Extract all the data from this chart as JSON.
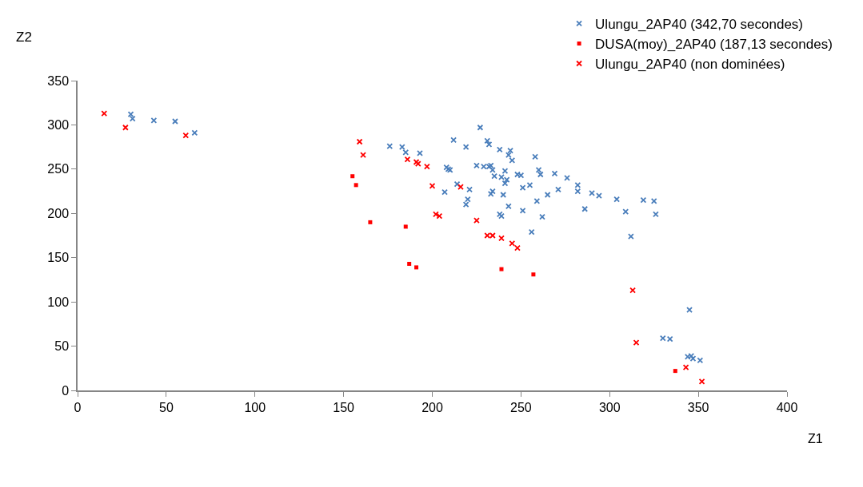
{
  "chart_data": {
    "type": "scatter",
    "xlabel": "Z1",
    "ylabel": "Z2",
    "xlim": [
      0,
      400
    ],
    "ylim": [
      0,
      350
    ],
    "xticks": [
      0,
      50,
      100,
      150,
      200,
      250,
      300,
      350,
      400
    ],
    "yticks": [
      0,
      50,
      100,
      150,
      200,
      250,
      300,
      350
    ],
    "grid": false,
    "legend": "top right",
    "marker": "cross",
    "series": [
      {
        "name": "Ulungu_2AP40 (342,70 secondes)",
        "color": "#4a7ebb",
        "x": [
          30,
          31,
          43,
          55,
          66,
          176,
          183,
          185,
          193,
          212,
          219,
          227,
          231,
          232,
          238,
          244,
          243,
          245,
          258,
          208,
          209,
          210,
          225,
          229,
          232,
          233,
          234,
          235,
          239,
          241,
          242,
          241,
          248,
          250,
          260,
          261,
          214,
          221,
          207,
          220,
          219,
          233,
          234,
          240,
          251,
          255,
          243,
          251,
          259,
          238,
          239,
          256,
          262,
          269,
          276,
          282,
          282,
          290,
          294,
          304,
          319,
          325,
          326,
          309,
          271,
          265,
          286,
          312,
          345,
          330,
          334,
          344,
          346,
          347,
          351
        ],
        "values": [
          312,
          307,
          305,
          304,
          291,
          276,
          275,
          269,
          268,
          283,
          275,
          297,
          282,
          278,
          272,
          271,
          266,
          260,
          264,
          252,
          250,
          249,
          254,
          253,
          253,
          254,
          249,
          242,
          241,
          248,
          238,
          234,
          244,
          243,
          249,
          244,
          233,
          227,
          224,
          216,
          210,
          222,
          225,
          221,
          229,
          232,
          208,
          203,
          214,
          199,
          197,
          179,
          196,
          245,
          240,
          232,
          225,
          223,
          220,
          216,
          215,
          214,
          199,
          202,
          227,
          221,
          205,
          174,
          91,
          59,
          58,
          38,
          39,
          36,
          34
        ]
      },
      {
        "name": "DUSA(moy)_2AP40 (187,13 secondes)",
        "color": "#ff0000",
        "marker": "square",
        "x": [
          155,
          157,
          165,
          185,
          187,
          191,
          239,
          257,
          337
        ],
        "values": [
          242,
          232,
          190,
          185,
          143,
          139,
          137,
          131,
          22
        ]
      },
      {
        "name": "Ulungu_2AP40 (non dominées)",
        "color": "#ff0000",
        "x": [
          15,
          27,
          61,
          159,
          161,
          186,
          191,
          192,
          197,
          200,
          216,
          202,
          204,
          225,
          231,
          234,
          239,
          245,
          248,
          313,
          315,
          343,
          352
        ],
        "values": [
          313,
          297,
          288,
          281,
          266,
          261,
          258,
          256,
          253,
          231,
          230,
          199,
          197,
          192,
          175,
          175,
          172,
          166,
          161,
          113,
          54,
          26,
          10
        ]
      }
    ]
  }
}
